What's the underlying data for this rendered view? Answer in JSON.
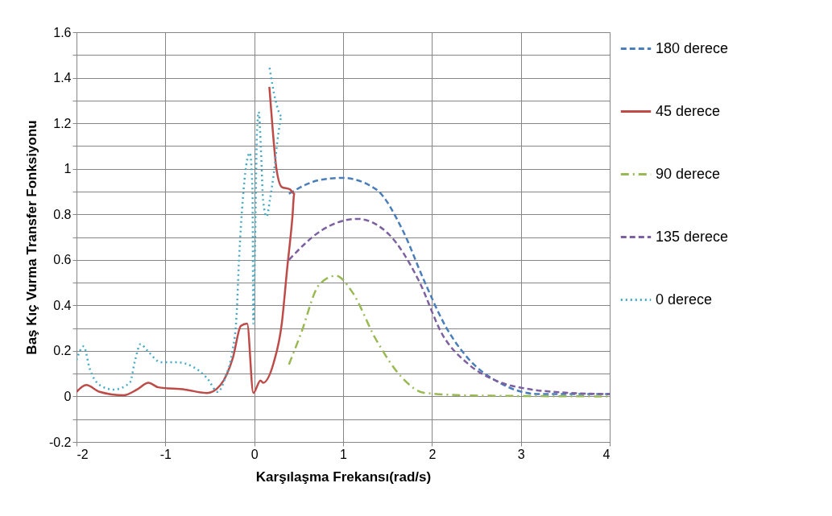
{
  "chart_data": {
    "type": "line",
    "xlabel": "Karşılaşma Frekansı(rad/s)",
    "ylabel": "Baş Kıç Vurma Transfer Fonksiyonu",
    "xlim": [
      -2,
      4
    ],
    "xticks": [
      -2,
      -1,
      0,
      1,
      2,
      3,
      4
    ],
    "ylim": [
      -0.2,
      1.6
    ],
    "yticks": [
      -0.2,
      {
        "value": -0.1,
        "label": null
      },
      0,
      {
        "value": 0.1,
        "label": null
      },
      0.2,
      {
        "value": 0.3,
        "label": null
      },
      0.4,
      {
        "value": 0.5,
        "label": null
      },
      0.6,
      {
        "value": 0.7,
        "label": null
      },
      0.8,
      {
        "value": 0.9,
        "label": null
      },
      1,
      {
        "value": 1.1,
        "label": null
      },
      1.2,
      {
        "value": 1.3,
        "label": null
      },
      1.4,
      {
        "value": 1.5,
        "label": null
      },
      1.6
    ],
    "grid": true,
    "legend": "right",
    "series": [
      {
        "name": "180 derece",
        "color": "#4a7ebb",
        "line_style": "dashed",
        "x": [
          0.39,
          0.73,
          0.99,
          1.37,
          1.67,
          1.91,
          2.15,
          2.4,
          2.76,
          3.21,
          4.0
        ],
        "values": [
          0.89,
          0.95,
          0.96,
          0.91,
          0.73,
          0.51,
          0.31,
          0.17,
          0.06,
          0.01,
          0.01
        ]
      },
      {
        "name": "45 derece",
        "color": "#be4b48",
        "line_style": "solid",
        "x": [
          -2.0,
          -1.89,
          -1.74,
          -1.47,
          -1.32,
          -1.19,
          -1.08,
          -0.78,
          -0.53,
          -0.38,
          -0.24,
          -0.15,
          -0.08,
          -0.01,
          0.07,
          0.1,
          0.22,
          0.31,
          0.37,
          0.43,
          0.45,
          0.4,
          0.31,
          0.25,
          0.19,
          0.17
        ],
        "values": [
          0.02,
          0.05,
          0.02,
          0.005,
          0.03,
          0.06,
          0.04,
          0.03,
          0.015,
          0.05,
          0.17,
          0.31,
          0.32,
          0.015,
          0.07,
          0.06,
          0.15,
          0.32,
          0.56,
          0.79,
          0.89,
          0.91,
          0.92,
          1.0,
          1.26,
          1.36
        ]
      },
      {
        "name": "90 derece",
        "color": "#98b954",
        "line_style": "dashdot",
        "x": [
          0.39,
          0.52,
          0.73,
          0.92,
          1.1,
          1.37,
          1.67,
          1.91,
          2.46,
          4.0
        ],
        "values": [
          0.14,
          0.27,
          0.49,
          0.53,
          0.46,
          0.25,
          0.08,
          0.016,
          0.004,
          0.0
        ]
      },
      {
        "name": "135 derece",
        "color": "#7d60a0",
        "line_style": "dashed",
        "x": [
          0.39,
          0.76,
          1.16,
          1.52,
          1.85,
          2.12,
          2.4,
          2.76,
          3.06,
          3.45,
          4.0
        ],
        "values": [
          0.6,
          0.73,
          0.78,
          0.71,
          0.51,
          0.27,
          0.145,
          0.063,
          0.034,
          0.018,
          0.01
        ]
      },
      {
        "name": "0 derece",
        "color": "#46aac5",
        "line_style": "dotted",
        "x": [
          -2.0,
          -1.92,
          -1.85,
          -1.74,
          -1.58,
          -1.4,
          -1.34,
          -1.28,
          -1.2,
          -1.05,
          -0.87,
          -0.69,
          -0.53,
          -0.41,
          -0.32,
          -0.25,
          -0.2,
          -0.17,
          -0.13,
          -0.05,
          -0.02,
          -0.01,
          0.01,
          0.03,
          0.05,
          0.075,
          0.1,
          0.14,
          0.175,
          0.22,
          0.27,
          0.31,
          0.24,
          0.17
        ],
        "values": [
          0.16,
          0.22,
          0.12,
          0.05,
          0.03,
          0.06,
          0.16,
          0.23,
          0.2,
          0.15,
          0.15,
          0.13,
          0.08,
          0.02,
          0.09,
          0.19,
          0.35,
          0.61,
          0.86,
          1.07,
          0.91,
          0.32,
          0.68,
          1.15,
          1.25,
          1.09,
          0.86,
          0.79,
          0.86,
          0.98,
          1.15,
          1.23,
          1.3,
          1.45
        ]
      }
    ]
  }
}
